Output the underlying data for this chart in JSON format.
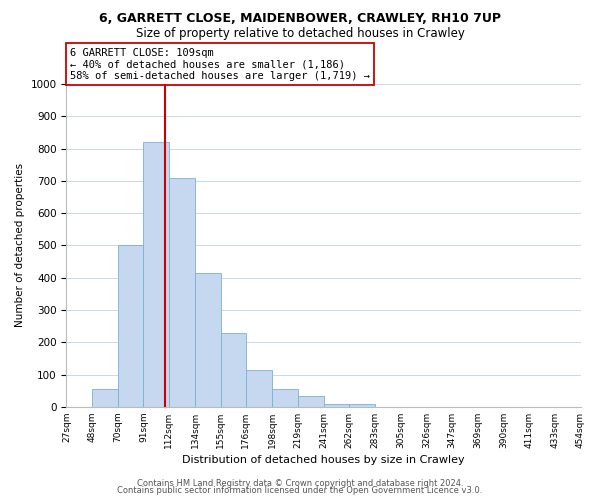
{
  "title": "6, GARRETT CLOSE, MAIDENBOWER, CRAWLEY, RH10 7UP",
  "subtitle": "Size of property relative to detached houses in Crawley",
  "xlabel": "Distribution of detached houses by size in Crawley",
  "ylabel": "Number of detached properties",
  "bar_edges": [
    27,
    48,
    70,
    91,
    112,
    134,
    155,
    176,
    198,
    219,
    241,
    262,
    283,
    305,
    326,
    347,
    369,
    390,
    411,
    433,
    454
  ],
  "bar_heights": [
    0,
    55,
    500,
    820,
    710,
    415,
    230,
    115,
    55,
    35,
    10,
    10,
    0,
    0,
    0,
    0,
    0,
    0,
    0,
    0
  ],
  "bar_color": "#c5d8f0",
  "bar_edgecolor": "#7ab0d4",
  "property_value": 109,
  "vline_color": "#cc0000",
  "annotation_line1": "6 GARRETT CLOSE: 109sqm",
  "annotation_line2": "← 40% of detached houses are smaller (1,186)",
  "annotation_line3": "58% of semi-detached houses are larger (1,719) →",
  "annotation_box_edgecolor": "#cc0000",
  "annotation_box_facecolor": "#ffffff",
  "tick_labels": [
    "27sqm",
    "48sqm",
    "70sqm",
    "91sqm",
    "112sqm",
    "134sqm",
    "155sqm",
    "176sqm",
    "198sqm",
    "219sqm",
    "241sqm",
    "262sqm",
    "283sqm",
    "305sqm",
    "326sqm",
    "347sqm",
    "369sqm",
    "390sqm",
    "411sqm",
    "433sqm",
    "454sqm"
  ],
  "ylim": [
    0,
    1000
  ],
  "yticks": [
    0,
    100,
    200,
    300,
    400,
    500,
    600,
    700,
    800,
    900,
    1000
  ],
  "footer1": "Contains HM Land Registry data © Crown copyright and database right 2024.",
  "footer2": "Contains public sector information licensed under the Open Government Licence v3.0.",
  "bg_color": "#ffffff",
  "grid_color": "#c8d8e8",
  "title_fontsize": 9,
  "subtitle_fontsize": 8.5,
  "annotation_fontsize": 7.5,
  "xlabel_fontsize": 8,
  "ylabel_fontsize": 7.5,
  "tick_fontsize": 6.5,
  "ytick_fontsize": 7.5,
  "footer_fontsize": 6
}
